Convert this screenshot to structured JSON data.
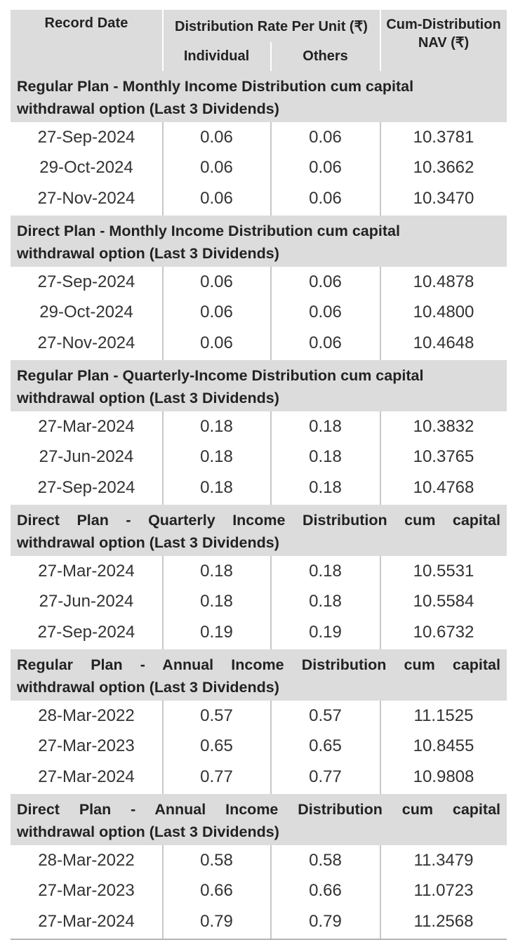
{
  "header": {
    "record_date": "Record Date",
    "distribution_rate": "Distribution Rate Per Unit (₹)",
    "individual": "Individual",
    "others": "Others",
    "nav_line1": "Cum-Distribution",
    "nav_line2": "NAV (₹)"
  },
  "sections": [
    {
      "title_line1": "Regular Plan - Monthly Income Distribution cum capital",
      "title_line2": "withdrawal option (Last 3 Dividends)",
      "rows": [
        {
          "date": "27-Sep-2024",
          "individual": "0.06",
          "others": "0.06",
          "nav": "10.3781"
        },
        {
          "date": "29-Oct-2024",
          "individual": "0.06",
          "others": "0.06",
          "nav": "10.3662"
        },
        {
          "date": "27-Nov-2024",
          "individual": "0.06",
          "others": "0.06",
          "nav": "10.3470"
        }
      ]
    },
    {
      "title_line1": "Direct Plan - Monthly Income Distribution cum capital",
      "title_line2": "withdrawal option (Last 3 Dividends)",
      "rows": [
        {
          "date": "27-Sep-2024",
          "individual": "0.06",
          "others": "0.06",
          "nav": "10.4878"
        },
        {
          "date": "29-Oct-2024",
          "individual": "0.06",
          "others": "0.06",
          "nav": "10.4800"
        },
        {
          "date": "27-Nov-2024",
          "individual": "0.06",
          "others": "0.06",
          "nav": "10.4648"
        }
      ]
    },
    {
      "title_line1": "Regular Plan - Quarterly-Income Distribution cum capital",
      "title_line2": "withdrawal option (Last 3 Dividends)",
      "rows": [
        {
          "date": "27-Mar-2024",
          "individual": "0.18",
          "others": "0.18",
          "nav": "10.3832"
        },
        {
          "date": "27-Jun-2024",
          "individual": "0.18",
          "others": "0.18",
          "nav": "10.3765"
        },
        {
          "date": "27-Sep-2024",
          "individual": "0.18",
          "others": "0.18",
          "nav": "10.4768"
        }
      ]
    },
    {
      "title_line1": "Direct Plan - Quarterly Income Distribution cum capital",
      "title_line2": "withdrawal option (Last 3 Dividends)",
      "rows": [
        {
          "date": "27-Mar-2024",
          "individual": "0.18",
          "others": "0.18",
          "nav": "10.5531"
        },
        {
          "date": "27-Jun-2024",
          "individual": "0.18",
          "others": "0.18",
          "nav": "10.5584"
        },
        {
          "date": "27-Sep-2024",
          "individual": "0.19",
          "others": "0.19",
          "nav": "10.6732"
        }
      ]
    },
    {
      "title_line1": "Regular Plan - Annual Income Distribution cum capital",
      "title_line2": "withdrawal option (Last 3 Dividends)",
      "rows": [
        {
          "date": "28-Mar-2022",
          "individual": "0.57",
          "others": "0.57",
          "nav": "11.1525"
        },
        {
          "date": "27-Mar-2023",
          "individual": "0.65",
          "others": "0.65",
          "nav": "10.8455"
        },
        {
          "date": "27-Mar-2024",
          "individual": "0.77",
          "others": "0.77",
          "nav": "10.9808"
        }
      ]
    },
    {
      "title_line1": "Direct Plan - Annual Income Distribution cum capital",
      "title_line2": "withdrawal option (Last 3 Dividends)",
      "rows": [
        {
          "date": "28-Mar-2022",
          "individual": "0.58",
          "others": "0.58",
          "nav": "11.3479"
        },
        {
          "date": "27-Mar-2023",
          "individual": "0.66",
          "others": "0.66",
          "nav": "11.0723"
        },
        {
          "date": "27-Mar-2024",
          "individual": "0.79",
          "others": "0.79",
          "nav": "11.2568"
        }
      ]
    }
  ]
}
